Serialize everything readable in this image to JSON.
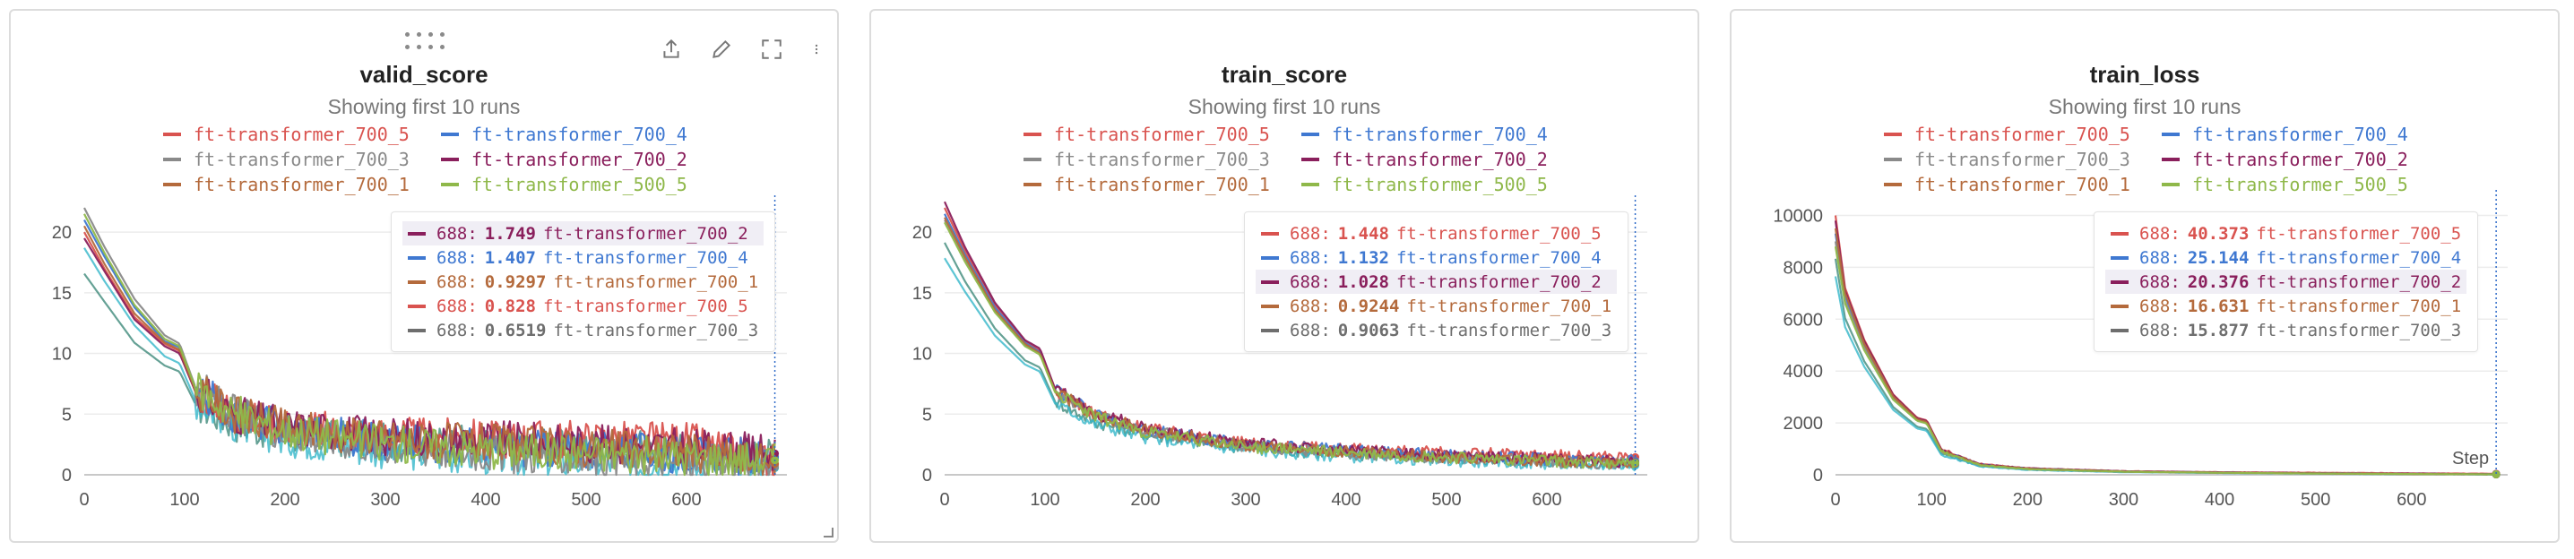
{
  "colors": {
    "ft-transformer_700_5": "#d9534f",
    "ft-transformer_700_4": "#3f78d1",
    "ft-transformer_700_3": "#8a8a8a",
    "ft-transformer_700_2": "#8a1f5c",
    "ft-transformer_700_1": "#b46a3c",
    "ft-transformer_500_5": "#8fb84a",
    "extra_cyan": "#35b7c9",
    "extra_teal": "#3f8a7a"
  },
  "toolbar_icons": [
    "share-icon",
    "edit-icon",
    "fullscreen-icon",
    "more-icon"
  ],
  "panels": [
    {
      "title": "valid_score",
      "subtitle": "Showing first 10 runs",
      "legend": [
        {
          "label": "ft-transformer_700_5",
          "color": "#d9534f"
        },
        {
          "label": "ft-transformer_700_4",
          "color": "#3f78d1"
        },
        {
          "label": "ft-transformer_700_3",
          "color": "#8a8a8a"
        },
        {
          "label": "ft-transformer_700_2",
          "color": "#8a1f5c"
        },
        {
          "label": "ft-transformer_700_1",
          "color": "#b46a3c"
        },
        {
          "label": "ft-transformer_500_5",
          "color": "#8fb84a"
        }
      ],
      "tooltip": [
        {
          "step": "688:",
          "value": "1.749",
          "run": "ft-transformer_700_2",
          "color": "#8a1f5c",
          "highlight": true
        },
        {
          "step": "688:",
          "value": "1.407",
          "run": "ft-transformer_700_4",
          "color": "#3f78d1",
          "highlight": false
        },
        {
          "step": "688:",
          "value": "0.9297",
          "run": "ft-transformer_700_1",
          "color": "#b46a3c",
          "highlight": false
        },
        {
          "step": "688:",
          "value": "0.828",
          "run": "ft-transformer_700_5",
          "color": "#d9534f",
          "highlight": false
        },
        {
          "step": "688:",
          "value": "0.6519",
          "run": "ft-transformer_700_3",
          "color": "#6e6e6e",
          "highlight": false
        }
      ]
    },
    {
      "title": "train_score",
      "subtitle": "Showing first 10 runs",
      "legend": [
        {
          "label": "ft-transformer_700_5",
          "color": "#d9534f"
        },
        {
          "label": "ft-transformer_700_4",
          "color": "#3f78d1"
        },
        {
          "label": "ft-transformer_700_3",
          "color": "#8a8a8a"
        },
        {
          "label": "ft-transformer_700_2",
          "color": "#8a1f5c"
        },
        {
          "label": "ft-transformer_700_1",
          "color": "#b46a3c"
        },
        {
          "label": "ft-transformer_500_5",
          "color": "#8fb84a"
        }
      ],
      "tooltip": [
        {
          "step": "688:",
          "value": "1.448",
          "run": "ft-transformer_700_5",
          "color": "#d9534f",
          "highlight": false
        },
        {
          "step": "688:",
          "value": "1.132",
          "run": "ft-transformer_700_4",
          "color": "#3f78d1",
          "highlight": false
        },
        {
          "step": "688:",
          "value": "1.028",
          "run": "ft-transformer_700_2",
          "color": "#8a1f5c",
          "highlight": true
        },
        {
          "step": "688:",
          "value": "0.9244",
          "run": "ft-transformer_700_1",
          "color": "#b46a3c",
          "highlight": false
        },
        {
          "step": "688:",
          "value": "0.9063",
          "run": "ft-transformer_700_3",
          "color": "#6e6e6e",
          "highlight": false
        }
      ]
    },
    {
      "title": "train_loss",
      "subtitle": "Showing first 10 runs",
      "legend": [
        {
          "label": "ft-transformer_700_5",
          "color": "#d9534f"
        },
        {
          "label": "ft-transformer_700_4",
          "color": "#3f78d1"
        },
        {
          "label": "ft-transformer_700_3",
          "color": "#8a8a8a"
        },
        {
          "label": "ft-transformer_700_2",
          "color": "#8a1f5c"
        },
        {
          "label": "ft-transformer_700_1",
          "color": "#b46a3c"
        },
        {
          "label": "ft-transformer_500_5",
          "color": "#8fb84a"
        }
      ],
      "tooltip": [
        {
          "step": "688:",
          "value": "40.373",
          "run": "ft-transformer_700_5",
          "color": "#d9534f",
          "highlight": false
        },
        {
          "step": "688:",
          "value": "25.144",
          "run": "ft-transformer_700_4",
          "color": "#3f78d1",
          "highlight": false
        },
        {
          "step": "688:",
          "value": "20.376",
          "run": "ft-transformer_700_2",
          "color": "#8a1f5c",
          "highlight": true
        },
        {
          "step": "688:",
          "value": "16.631",
          "run": "ft-transformer_700_1",
          "color": "#b46a3c",
          "highlight": false
        },
        {
          "step": "688:",
          "value": "15.877",
          "run": "ft-transformer_700_3",
          "color": "#6e6e6e",
          "highlight": false
        }
      ],
      "x_axis_label": "Step"
    }
  ],
  "chart_data": [
    {
      "type": "line",
      "title": "valid_score",
      "xlabel": "",
      "ylabel": "",
      "xlim": [
        0,
        700
      ],
      "ylim": [
        0,
        22
      ],
      "xticks": [
        0,
        100,
        200,
        300,
        400,
        500,
        600
      ],
      "yticks": [
        0,
        5,
        10,
        15,
        20
      ],
      "hover_step": 688,
      "noise": 1.6,
      "series": [
        {
          "name": "ft-transformer_700_5",
          "color": "#d9534f",
          "x": [
            0,
            20,
            50,
            80,
            95,
            110,
            150,
            200,
            300,
            400,
            500,
            600,
            688
          ],
          "values": [
            20.0,
            17.0,
            13.0,
            10.8,
            10.2,
            7.0,
            5.0,
            4.0,
            3.2,
            3.0,
            2.9,
            2.8,
            0.828
          ]
        },
        {
          "name": "ft-transformer_700_4",
          "color": "#3f78d1",
          "x": [
            0,
            20,
            50,
            80,
            95,
            110,
            150,
            200,
            300,
            400,
            500,
            600,
            688
          ],
          "values": [
            21.0,
            18.0,
            13.8,
            11.0,
            10.5,
            7.2,
            5.0,
            3.8,
            2.8,
            2.3,
            2.0,
            1.7,
            1.407
          ]
        },
        {
          "name": "ft-transformer_700_3",
          "color": "#8a8a8a",
          "x": [
            0,
            20,
            50,
            80,
            95,
            110,
            150,
            200,
            300,
            400,
            500,
            600,
            688
          ],
          "values": [
            22.0,
            18.8,
            14.5,
            11.5,
            10.8,
            7.4,
            5.0,
            3.6,
            2.4,
            1.8,
            1.4,
            1.0,
            0.6519
          ]
        },
        {
          "name": "ft-transformer_700_2",
          "color": "#8a1f5c",
          "x": [
            0,
            20,
            50,
            80,
            95,
            110,
            150,
            200,
            300,
            400,
            500,
            600,
            688
          ],
          "values": [
            19.5,
            16.8,
            12.8,
            10.6,
            10.0,
            7.0,
            5.0,
            4.0,
            3.2,
            2.9,
            2.6,
            2.3,
            1.749
          ]
        },
        {
          "name": "ft-transformer_700_1",
          "color": "#b46a3c",
          "x": [
            0,
            20,
            50,
            80,
            95,
            110,
            150,
            200,
            300,
            400,
            500,
            600,
            688
          ],
          "values": [
            20.5,
            17.4,
            13.3,
            10.9,
            10.3,
            7.1,
            5.0,
            3.9,
            3.0,
            2.6,
            2.2,
            1.9,
            0.9297
          ]
        },
        {
          "name": "ft-transformer_500_5",
          "color": "#8fb84a",
          "x": [
            0,
            20,
            50,
            80,
            95,
            110,
            150,
            200,
            300,
            400,
            500,
            600,
            688
          ],
          "values": [
            21.5,
            18.3,
            14.0,
            11.2,
            10.6,
            7.3,
            5.0,
            3.7,
            2.6,
            2.1,
            1.8,
            1.5,
            1.2
          ]
        }
      ]
    },
    {
      "type": "line",
      "title": "train_score",
      "xlabel": "",
      "ylabel": "",
      "xlim": [
        0,
        700
      ],
      "ylim": [
        0,
        22
      ],
      "xticks": [
        0,
        100,
        200,
        300,
        400,
        500,
        600
      ],
      "yticks": [
        0,
        5,
        10,
        15,
        20
      ],
      "hover_step": 688,
      "noise": 0.5,
      "series": [
        {
          "name": "ft-transformer_700_5",
          "color": "#d9534f",
          "x": [
            0,
            20,
            50,
            80,
            95,
            110,
            150,
            200,
            300,
            400,
            500,
            600,
            688
          ],
          "values": [
            22.0,
            18.5,
            14.0,
            11.0,
            10.2,
            7.0,
            5.0,
            3.8,
            2.6,
            2.1,
            1.8,
            1.6,
            1.448
          ]
        },
        {
          "name": "ft-transformer_700_4",
          "color": "#3f78d1",
          "x": [
            0,
            20,
            50,
            80,
            95,
            110,
            150,
            200,
            300,
            400,
            500,
            600,
            688
          ],
          "values": [
            21.5,
            18.2,
            13.8,
            10.9,
            10.1,
            7.0,
            5.0,
            3.7,
            2.5,
            2.0,
            1.6,
            1.3,
            1.132
          ]
        },
        {
          "name": "ft-transformer_700_3",
          "color": "#8a8a8a",
          "x": [
            0,
            20,
            50,
            80,
            95,
            110,
            150,
            200,
            300,
            400,
            500,
            600,
            688
          ],
          "values": [
            21.0,
            17.8,
            13.5,
            10.7,
            10.0,
            6.9,
            4.9,
            3.6,
            2.4,
            1.8,
            1.4,
            1.1,
            0.9063
          ]
        },
        {
          "name": "ft-transformer_700_2",
          "color": "#8a1f5c",
          "x": [
            0,
            20,
            50,
            80,
            95,
            110,
            150,
            200,
            300,
            400,
            500,
            600,
            688
          ],
          "values": [
            22.5,
            18.8,
            14.2,
            11.1,
            10.4,
            7.1,
            5.1,
            3.9,
            2.6,
            2.0,
            1.6,
            1.3,
            1.028
          ]
        },
        {
          "name": "ft-transformer_700_1",
          "color": "#b46a3c",
          "x": [
            0,
            20,
            50,
            80,
            95,
            110,
            150,
            200,
            300,
            400,
            500,
            600,
            688
          ],
          "values": [
            21.2,
            18.0,
            13.6,
            10.8,
            10.0,
            6.9,
            4.9,
            3.7,
            2.4,
            1.9,
            1.5,
            1.2,
            0.9244
          ]
        },
        {
          "name": "ft-transformer_500_5",
          "color": "#8fb84a",
          "x": [
            0,
            20,
            50,
            80,
            95,
            110,
            150,
            200,
            300,
            400,
            500,
            600,
            688
          ],
          "values": [
            20.8,
            17.6,
            13.4,
            10.6,
            9.9,
            6.8,
            4.8,
            3.5,
            2.3,
            1.8,
            1.4,
            1.1,
            1.0
          ]
        }
      ]
    },
    {
      "type": "line",
      "title": "train_loss",
      "xlabel": "Step",
      "ylabel": "",
      "xlim": [
        0,
        700
      ],
      "ylim": [
        0,
        10500
      ],
      "xticks": [
        0,
        100,
        200,
        300,
        400,
        500,
        600
      ],
      "yticks": [
        0,
        2000,
        4000,
        6000,
        8000,
        10000
      ],
      "hover_step": 688,
      "noise": 25,
      "series": [
        {
          "name": "ft-transformer_700_5",
          "color": "#d9534f",
          "x": [
            0,
            10,
            30,
            60,
            85,
            95,
            110,
            150,
            200,
            300,
            400,
            500,
            600,
            688
          ],
          "values": [
            10000,
            7200,
            5200,
            3100,
            2200,
            2100,
            1000,
            420,
            250,
            140,
            100,
            80,
            60,
            40.373
          ]
        },
        {
          "name": "ft-transformer_700_4",
          "color": "#3f78d1",
          "x": [
            0,
            10,
            30,
            60,
            85,
            95,
            110,
            150,
            200,
            300,
            400,
            500,
            600,
            688
          ],
          "values": [
            9300,
            6900,
            5000,
            3000,
            2150,
            2050,
            950,
            400,
            240,
            130,
            90,
            60,
            40,
            25.144
          ]
        },
        {
          "name": "ft-transformer_700_3",
          "color": "#8a8a8a",
          "x": [
            0,
            10,
            30,
            60,
            85,
            95,
            110,
            150,
            200,
            300,
            400,
            500,
            600,
            688
          ],
          "values": [
            9000,
            6700,
            4900,
            2950,
            2100,
            2000,
            920,
            380,
            220,
            120,
            80,
            50,
            30,
            15.877
          ]
        },
        {
          "name": "ft-transformer_700_2",
          "color": "#8a1f5c",
          "x": [
            0,
            10,
            30,
            60,
            85,
            95,
            110,
            150,
            200,
            300,
            400,
            500,
            600,
            688
          ],
          "values": [
            9800,
            7100,
            5150,
            3080,
            2180,
            2080,
            980,
            410,
            245,
            135,
            95,
            60,
            35,
            20.376
          ]
        },
        {
          "name": "ft-transformer_700_1",
          "color": "#b46a3c",
          "x": [
            0,
            10,
            30,
            60,
            85,
            95,
            110,
            150,
            200,
            300,
            400,
            500,
            600,
            688
          ],
          "values": [
            9500,
            7000,
            5050,
            3020,
            2140,
            2040,
            940,
            390,
            230,
            125,
            85,
            55,
            32,
            16.631
          ]
        },
        {
          "name": "ft-transformer_500_5",
          "color": "#8fb84a",
          "x": [
            0,
            10,
            30,
            60,
            85,
            95,
            110,
            150,
            200,
            300,
            400,
            500,
            600,
            688
          ],
          "values": [
            8800,
            6600,
            4800,
            2900,
            2080,
            1980,
            900,
            370,
            215,
            118,
            78,
            48,
            30,
            18
          ]
        }
      ]
    }
  ]
}
